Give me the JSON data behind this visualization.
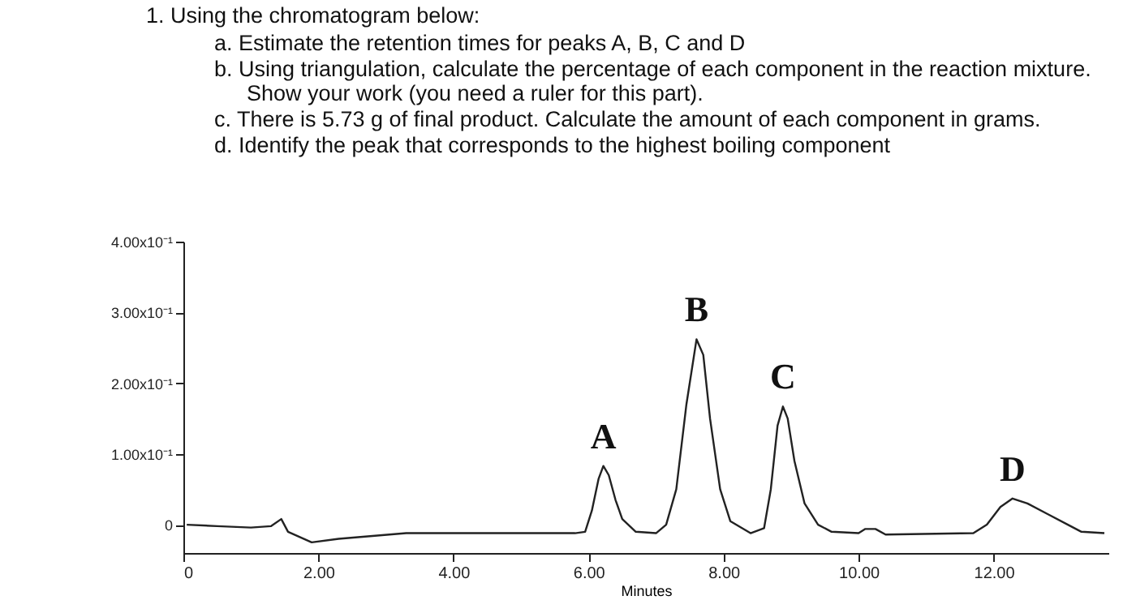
{
  "chart_data": {
    "type": "line",
    "title": "1.  Using the chromatogram below:",
    "annotations": [
      "a.  Estimate the retention times for peaks A, B, C and D",
      "b.  Using triangulation, calculate the percentage of each component in the reaction mixture. Show your work (you need a ruler for this part).",
      "c.  There is 5.73 g of final product. Calculate the amount of each component in grams.",
      "d.  Identify the peak that corresponds to the highest boiling component",
      {
        "text": "A",
        "x": 6.22,
        "y": 0.083
      },
      {
        "text": "B",
        "x": 7.6,
        "y": 0.262
      },
      {
        "text": "C",
        "x": 8.88,
        "y": 0.167
      },
      {
        "text": "D",
        "x": 12.28,
        "y": 0.037
      }
    ],
    "xlabel": "Minutes",
    "x": [
      0.05,
      0.5,
      1.0,
      1.3,
      1.45,
      1.55,
      1.9,
      2.3,
      3.3,
      5.8,
      5.95,
      6.05,
      6.15,
      6.22,
      6.3,
      6.4,
      6.5,
      6.7,
      7.0,
      7.15,
      7.3,
      7.45,
      7.6,
      7.7,
      7.8,
      7.95,
      8.1,
      8.4,
      8.6,
      8.7,
      8.8,
      8.88,
      8.95,
      9.05,
      9.2,
      9.4,
      9.6,
      10.0,
      10.1,
      10.25,
      10.4,
      11.7,
      11.9,
      12.1,
      12.28,
      12.5,
      12.8,
      13.1,
      13.3,
      13.64
    ],
    "series": [
      {
        "color": "#222222",
        "values": [
          0.0,
          -0.002,
          -0.004,
          -0.002,
          0.008,
          -0.01,
          -0.025,
          -0.02,
          -0.012,
          -0.012,
          -0.01,
          0.02,
          0.065,
          0.083,
          0.07,
          0.035,
          0.008,
          -0.01,
          -0.012,
          0.0,
          0.05,
          0.17,
          0.262,
          0.24,
          0.15,
          0.05,
          0.005,
          -0.012,
          -0.005,
          0.05,
          0.14,
          0.167,
          0.15,
          0.09,
          0.03,
          0.0,
          -0.01,
          -0.012,
          -0.006,
          -0.006,
          -0.014,
          -0.012,
          0.0,
          0.025,
          0.037,
          0.03,
          0.015,
          0.0,
          -0.01,
          -0.012
        ]
      }
    ],
    "xlim": [
      0,
      13.7
    ],
    "xticks": [
      {
        "value": 0,
        "label": "0"
      },
      {
        "value": 2,
        "label": "2.00"
      },
      {
        "value": 4,
        "label": "4.00"
      },
      {
        "value": 6,
        "label": "6.00"
      },
      {
        "value": 8,
        "label": "8.00"
      },
      {
        "value": 10,
        "label": "10.00"
      },
      {
        "value": 12,
        "label": "12.00"
      }
    ],
    "ylim": [
      -0.04,
      0.4
    ],
    "yticks": [
      0,
      {
        "value": 0.1,
        "label": "1.00x10⁻¹"
      },
      {
        "value": 0.2,
        "label": "2.00x10⁻¹"
      },
      {
        "value": 0.3,
        "label": "3.00x10⁻¹"
      },
      {
        "value": 0.4,
        "label": "4.00x10⁻¹"
      }
    ],
    "grid": false,
    "marker": "none",
    "line_style": "solid"
  }
}
